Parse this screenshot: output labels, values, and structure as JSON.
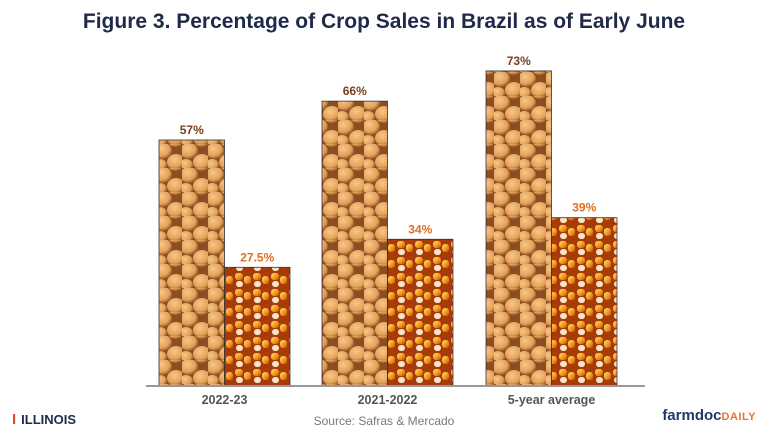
{
  "title": "Figure 3. Percentage of Crop Sales in Brazil as of Early June",
  "source": "Source: Safras & Mercado",
  "logos": {
    "left": "ILLINOIS",
    "right_main": "farmdoc",
    "right_accent": "DAILY"
  },
  "colors": {
    "soy_label": "#7a3e1c",
    "corn_label": "#e07020",
    "title": "#1f2a4a",
    "axis": "#999999"
  },
  "chart_data": {
    "type": "bar",
    "categories": [
      "2022-23",
      "2021-2022",
      "5-year average"
    ],
    "series": [
      {
        "values": [
          57,
          66,
          73
        ],
        "labels": [
          "57%",
          "66%",
          "73%"
        ],
        "fill": "soybean-image"
      },
      {
        "values": [
          27.5,
          34,
          39
        ],
        "labels": [
          "27.5%",
          "34%",
          "39%"
        ],
        "fill": "corn-image"
      }
    ],
    "ylim": [
      0,
      100
    ],
    "grid": false,
    "legend": "none"
  }
}
